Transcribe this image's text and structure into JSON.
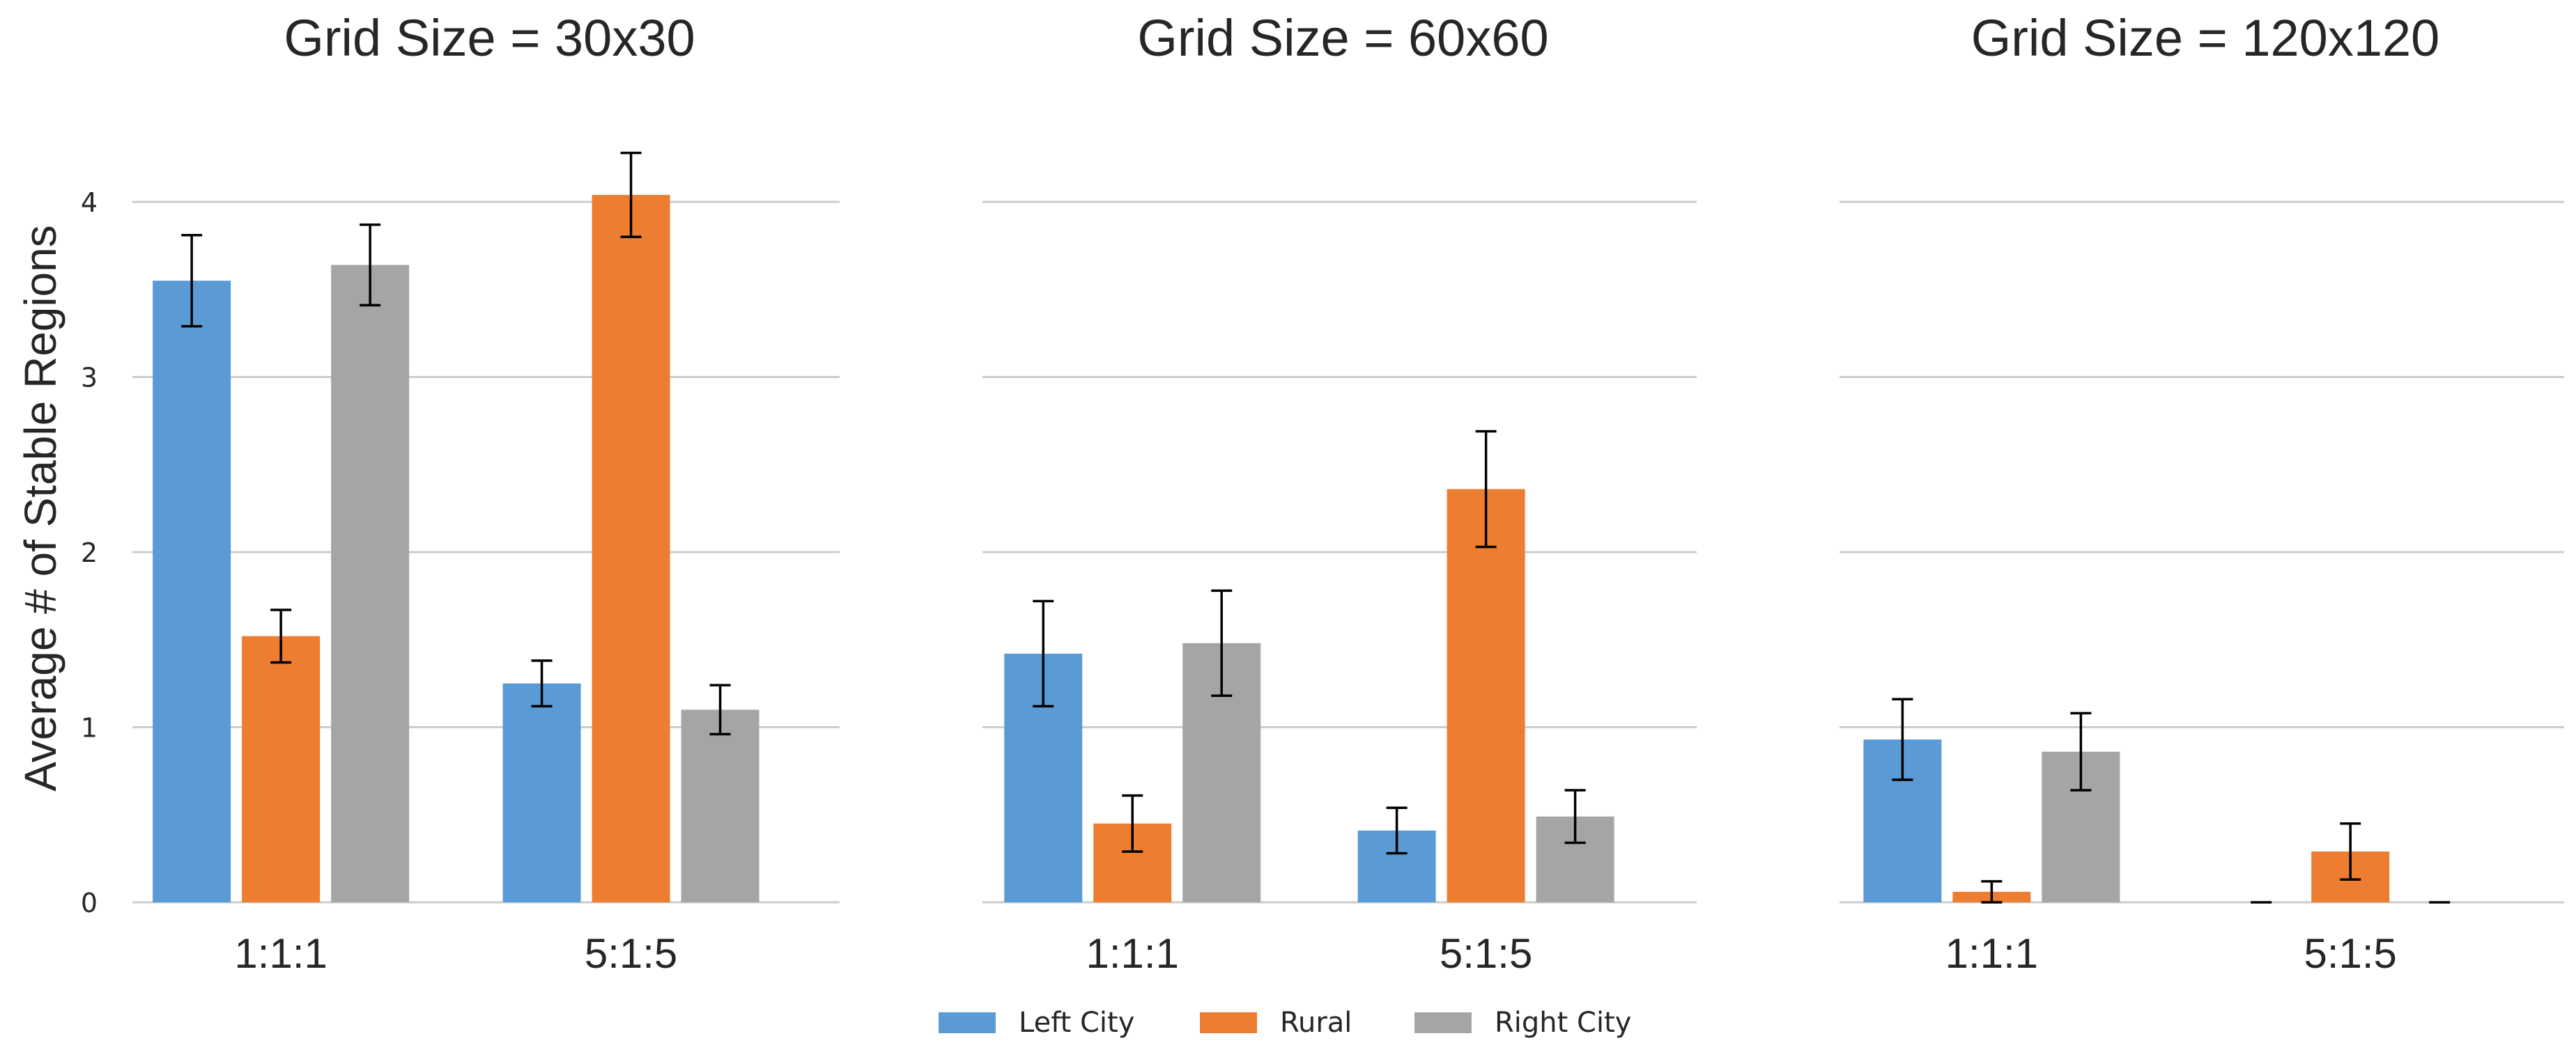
{
  "chart_data": [
    {
      "type": "bar",
      "title": "Grid Size = 30x30",
      "ylabel": "Average # of Stable Regions",
      "xlabel": "",
      "ylim": [
        0,
        4.3
      ],
      "yticks": [
        0,
        1,
        2,
        3,
        4
      ],
      "grid": true,
      "categories": [
        "1:1:1",
        "5:1:5"
      ],
      "series": [
        {
          "name": "Left City",
          "values": [
            3.55,
            1.25
          ],
          "errors": [
            0.26,
            0.13
          ]
        },
        {
          "name": "Rural",
          "values": [
            1.52,
            4.04
          ],
          "errors": [
            0.15,
            0.24
          ]
        },
        {
          "name": "Right City",
          "values": [
            3.64,
            1.1
          ],
          "errors": [
            0.23,
            0.14
          ]
        }
      ]
    },
    {
      "type": "bar",
      "title": "Grid Size = 60x60",
      "ylim": [
        0,
        4.3
      ],
      "grid": true,
      "categories": [
        "1:1:1",
        "5:1:5"
      ],
      "series": [
        {
          "name": "Left City",
          "values": [
            1.42,
            0.41
          ],
          "errors": [
            0.3,
            0.13
          ]
        },
        {
          "name": "Rural",
          "values": [
            0.45,
            2.36
          ],
          "errors": [
            0.16,
            0.33
          ]
        },
        {
          "name": "Right City",
          "values": [
            1.48,
            0.49
          ],
          "errors": [
            0.3,
            0.15
          ]
        }
      ]
    },
    {
      "type": "bar",
      "title": "Grid Size = 120x120",
      "ylim": [
        0,
        4.3
      ],
      "grid": true,
      "categories": [
        "1:1:1",
        "5:1:5"
      ],
      "series": [
        {
          "name": "Left City",
          "values": [
            0.93,
            0.0
          ],
          "errors": [
            0.23,
            0.0
          ]
        },
        {
          "name": "Rural",
          "values": [
            0.06,
            0.29
          ],
          "errors": [
            0.06,
            0.16
          ]
        },
        {
          "name": "Right City",
          "values": [
            0.86,
            0.0
          ],
          "errors": [
            0.22,
            0.0
          ]
        }
      ]
    }
  ],
  "legend": {
    "placement": "bottom-center",
    "items": [
      {
        "label": "Left City",
        "color": "#5b9bd5"
      },
      {
        "label": "Rural",
        "color": "#ed7d31"
      },
      {
        "label": "Right City",
        "color": "#a5a5a5"
      }
    ]
  },
  "colors": {
    "Left City": "#5b9bd5",
    "Rural": "#ed7d31",
    "Right City": "#a5a5a5",
    "grid": "#cccccc",
    "error_bar": "#000000"
  }
}
